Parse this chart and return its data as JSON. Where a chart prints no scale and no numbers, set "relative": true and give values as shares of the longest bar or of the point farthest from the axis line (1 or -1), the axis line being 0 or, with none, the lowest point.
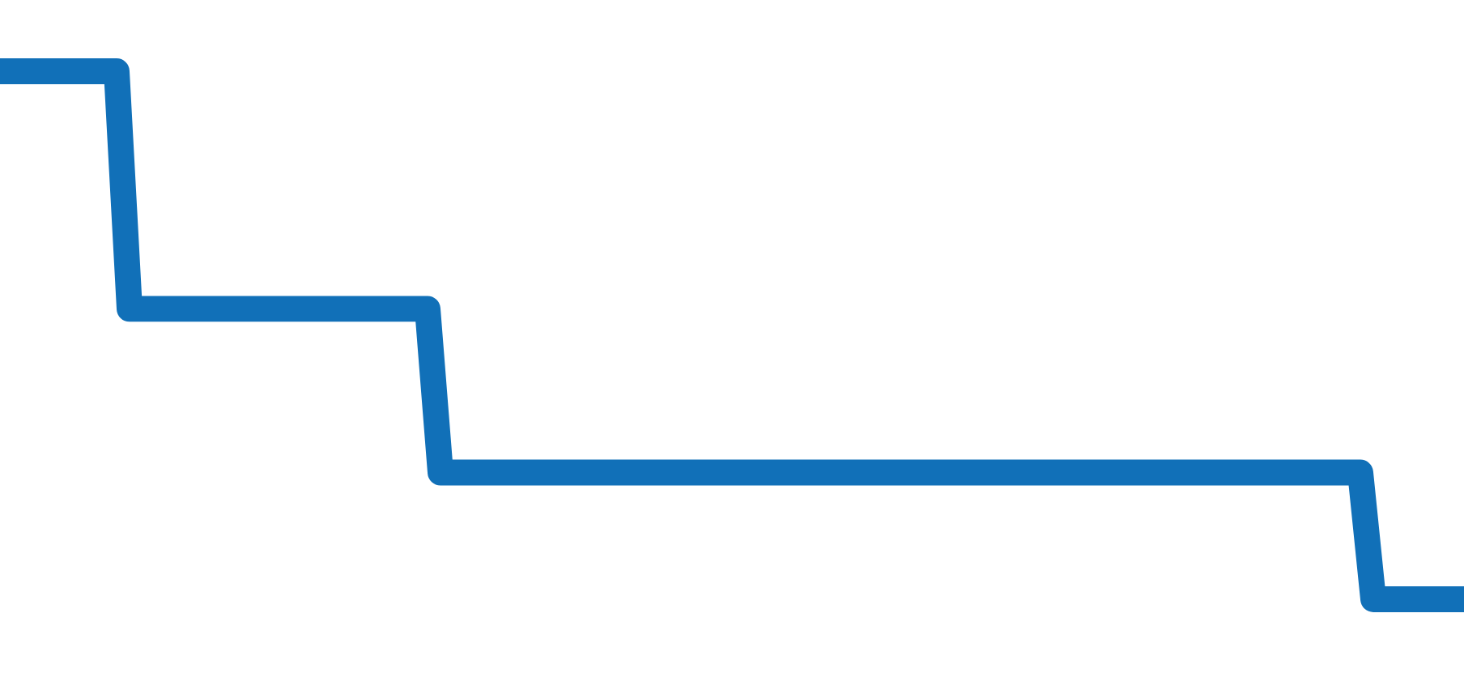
{
  "chart_data": {
    "type": "line",
    "relative": true,
    "line_style": "solid",
    "categories": [
      null,
      null,
      null,
      null,
      null,
      null,
      null,
      null,
      null,
      null,
      null,
      null,
      null,
      null,
      null,
      null,
      null,
      null,
      null,
      null,
      null,
      null,
      null,
      null,
      null,
      null,
      null,
      null,
      null,
      null,
      null,
      null,
      null,
      null,
      null,
      null,
      null,
      null,
      null,
      null,
      null,
      null,
      null,
      null,
      null,
      null,
      null,
      null,
      null,
      null,
      null,
      null,
      null,
      null,
      null,
      null,
      null,
      null,
      null,
      null,
      null,
      null,
      null,
      null,
      null,
      null,
      null,
      null,
      null,
      null,
      null,
      null,
      null,
      null,
      null,
      null,
      null,
      null,
      null,
      null,
      null,
      null,
      null,
      null,
      null,
      null,
      null,
      null,
      null,
      null,
      null,
      null,
      null,
      null,
      null,
      null,
      null,
      null,
      null,
      null,
      null,
      null,
      null,
      null,
      null,
      null,
      null,
      null,
      null,
      null,
      null,
      null,
      null,
      null
    ],
    "series": [
      {
        "color": "#1170b8",
        "values": [
          1,
          1,
          1,
          1,
          1,
          1,
          1,
          1,
          1,
          1,
          0.55,
          0.55,
          0.55,
          0.55,
          0.55,
          0.55,
          0.55,
          0.55,
          0.55,
          0.55,
          0.55,
          0.55,
          0.55,
          0.55,
          0.55,
          0.55,
          0.55,
          0.55,
          0.55,
          0.55,
          0.55,
          0.55,
          0.55,
          0.55,
          0.24,
          0.24,
          0.24,
          0.24,
          0.24,
          0.24,
          0.24,
          0.24,
          0.24,
          0.24,
          0.24,
          0.24,
          0.24,
          0.24,
          0.24,
          0.24,
          0.24,
          0.24,
          0.24,
          0.24,
          0.24,
          0.24,
          0.24,
          0.24,
          0.24,
          0.24,
          0.24,
          0.24,
          0.24,
          0.24,
          0.24,
          0.24,
          0.24,
          0.24,
          0.24,
          0.24,
          0.24,
          0.24,
          0.24,
          0.24,
          0.24,
          0.24,
          0.24,
          0.24,
          0.24,
          0.24,
          0.24,
          0.24,
          0.24,
          0.24,
          0.24,
          0.24,
          0.24,
          0.24,
          0.24,
          0.24,
          0.24,
          0.24,
          0.24,
          0.24,
          0.24,
          0.24,
          0.24,
          0.24,
          0.24,
          0.24,
          0.24,
          0.24,
          0.24,
          0.24,
          0.24,
          0.24,
          0,
          0,
          0,
          0,
          0,
          0,
          0,
          0
        ]
      }
    ]
  }
}
